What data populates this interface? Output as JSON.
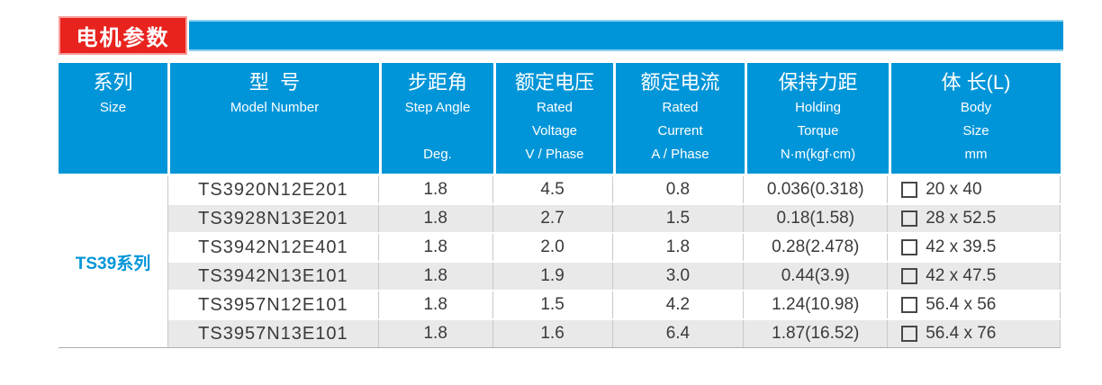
{
  "title": {
    "label": "电机参数"
  },
  "colors": {
    "accent_blue": "#0095d8",
    "title_red": "#e8231e",
    "row_alt_gray": "#e9e9e9",
    "grid_line": "#c8c8c8",
    "text_dark": "#3a3a3a"
  },
  "table": {
    "headers": [
      {
        "cn": "系列",
        "en1": "Size",
        "en2": "",
        "en3": ""
      },
      {
        "cn": "型  号",
        "en1": "Model Number",
        "en2": "",
        "en3": ""
      },
      {
        "cn": "步距角",
        "en1": "Step Angle",
        "en2": "",
        "en3": "Deg."
      },
      {
        "cn": "额定电压",
        "en1": "Rated",
        "en2": "Voltage",
        "en3": "V / Phase"
      },
      {
        "cn": "额定电流",
        "en1": "Rated",
        "en2": "Current",
        "en3": "A / Phase"
      },
      {
        "cn": "保持力距",
        "en1": "Holding",
        "en2": "Torque",
        "en3": "N·m(kgf·cm)"
      },
      {
        "cn": "体 长(L)",
        "en1": "Body",
        "en2": "Size",
        "en3": "mm"
      }
    ],
    "series_label": "TS39系列",
    "rows": [
      {
        "model": "TS3920N12E201",
        "step_angle": "1.8",
        "rated_voltage": "4.5",
        "rated_current": "0.8",
        "holding_torque": "0.036(0.318)",
        "body_size": "20 x 40"
      },
      {
        "model": "TS3928N13E201",
        "step_angle": "1.8",
        "rated_voltage": "2.7",
        "rated_current": "1.5",
        "holding_torque": "0.18(1.58)",
        "body_size": "28 x 52.5"
      },
      {
        "model": "TS3942N12E401",
        "step_angle": "1.8",
        "rated_voltage": "2.0",
        "rated_current": "1.8",
        "holding_torque": "0.28(2.478)",
        "body_size": "42 x 39.5"
      },
      {
        "model": "TS3942N13E101",
        "step_angle": "1.8",
        "rated_voltage": "1.9",
        "rated_current": "3.0",
        "holding_torque": "0.44(3.9)",
        "body_size": "42 x 47.5"
      },
      {
        "model": "TS3957N12E101",
        "step_angle": "1.8",
        "rated_voltage": "1.5",
        "rated_current": "4.2",
        "holding_torque": "1.24(10.98)",
        "body_size": "56.4 x 56"
      },
      {
        "model": "TS3957N13E101",
        "step_angle": "1.8",
        "rated_voltage": "1.6",
        "rated_current": "6.4",
        "holding_torque": "1.87(16.52)",
        "body_size": "56.4 x 76"
      }
    ]
  }
}
